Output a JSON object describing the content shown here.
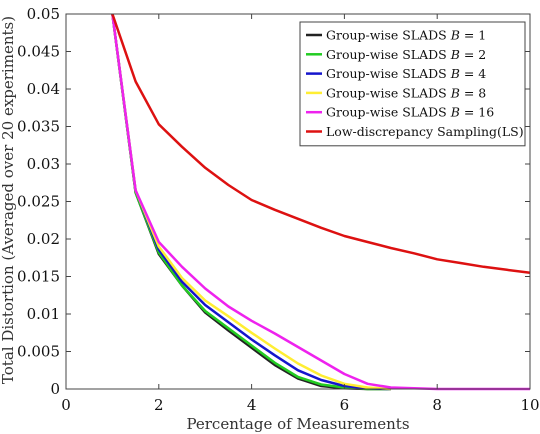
{
  "chart_data": {
    "type": "line",
    "title": "",
    "xlabel": "Percentage of Measurements",
    "ylabel": "Total Distortion (Averaged over 20 experiments)",
    "xlim": [
      0,
      10
    ],
    "ylim": [
      0,
      0.05
    ],
    "x_ticks": [
      0,
      2,
      4,
      6,
      8,
      10
    ],
    "x_tick_labels": [
      "0",
      "2",
      "4",
      "6",
      "8",
      "10"
    ],
    "y_ticks": [
      0,
      0.005,
      0.01,
      0.015,
      0.02,
      0.025,
      0.03,
      0.035,
      0.04,
      0.045,
      0.05
    ],
    "y_tick_labels": [
      "0",
      "0.005",
      "0.01",
      "0.015",
      "0.02",
      "0.025",
      "0.03",
      "0.035",
      "0.04",
      "0.045",
      "0.05"
    ],
    "grid": false,
    "legend_position": "top-right",
    "series": [
      {
        "name": "Group-wise SLADS B = 1",
        "legend_label": "Group-wise SLADS ",
        "legend_param": "B",
        "legend_value": " = 1",
        "color": "#222222",
        "x": [
          1.0,
          1.5,
          2.0,
          2.5,
          3.0,
          3.5,
          4.0,
          4.5,
          5.0,
          5.5,
          6.0,
          6.5,
          7.0
        ],
        "y": [
          0.05,
          0.0262,
          0.018,
          0.0138,
          0.0102,
          0.0078,
          0.0055,
          0.0032,
          0.0014,
          0.0004,
          0.0001,
          0.0,
          0.0
        ]
      },
      {
        "name": "Group-wise SLADS B = 2",
        "legend_label": "Group-wise SLADS ",
        "legend_param": "B",
        "legend_value": " = 2",
        "color": "#22cc22",
        "x": [
          1.0,
          1.5,
          2.0,
          2.5,
          3.0,
          3.5,
          4.0,
          4.5,
          5.0,
          5.5,
          6.0,
          6.5,
          7.0
        ],
        "y": [
          0.05,
          0.0262,
          0.0182,
          0.0138,
          0.0104,
          0.0081,
          0.0058,
          0.0035,
          0.0016,
          0.0006,
          0.0002,
          0.0,
          0.0
        ]
      },
      {
        "name": "Group-wise SLADS B = 4",
        "legend_label": "Group-wise SLADS ",
        "legend_param": "B",
        "legend_value": " = 4",
        "color": "#1515cc",
        "x": [
          1.0,
          1.5,
          2.0,
          2.5,
          3.0,
          3.5,
          4.0,
          4.5,
          5.0,
          5.5,
          6.0,
          6.5,
          7.0
        ],
        "y": [
          0.05,
          0.0265,
          0.0186,
          0.0143,
          0.0112,
          0.0089,
          0.0066,
          0.0045,
          0.0025,
          0.0012,
          0.0004,
          0.0001,
          0.0
        ]
      },
      {
        "name": "Group-wise SLADS B = 8",
        "legend_label": "Group-wise SLADS ",
        "legend_param": "B",
        "legend_value": " = 8",
        "color": "#ffee33",
        "x": [
          1.0,
          1.5,
          2.0,
          2.5,
          3.0,
          3.5,
          4.0,
          4.5,
          5.0,
          5.5,
          6.0,
          6.5,
          7.0
        ],
        "y": [
          0.05,
          0.0265,
          0.019,
          0.0148,
          0.0118,
          0.0097,
          0.0075,
          0.0054,
          0.0034,
          0.0018,
          0.0007,
          0.0002,
          0.0
        ]
      },
      {
        "name": "Group-wise SLADS B = 16",
        "legend_label": "Group-wise SLADS ",
        "legend_param": "B",
        "legend_value": " = 16",
        "color": "#ee22ee",
        "x": [
          1.0,
          1.5,
          2.0,
          2.5,
          3.0,
          3.5,
          4.0,
          4.5,
          5.0,
          5.5,
          6.0,
          6.5,
          7.0,
          8.0,
          9.0,
          10.0
        ],
        "y": [
          0.05,
          0.0265,
          0.0196,
          0.0163,
          0.0134,
          0.011,
          0.0091,
          0.0074,
          0.0056,
          0.0038,
          0.002,
          0.0007,
          0.0002,
          0.0,
          0.0,
          0.0
        ]
      },
      {
        "name": "Low-discrepancy Sampling(LS)",
        "legend_label": "Low-discrepancy Sampling(LS)",
        "legend_param": "",
        "legend_value": "",
        "color": "#dd1111",
        "x": [
          1.0,
          1.5,
          2.0,
          2.5,
          3.0,
          3.5,
          4.0,
          4.5,
          5.0,
          5.5,
          6.0,
          6.5,
          7.0,
          7.5,
          8.0,
          8.5,
          9.0,
          9.5,
          10.0
        ],
        "y": [
          0.05,
          0.041,
          0.0353,
          0.0323,
          0.0295,
          0.0272,
          0.0252,
          0.0239,
          0.0227,
          0.0215,
          0.0204,
          0.0196,
          0.0188,
          0.0181,
          0.0173,
          0.0168,
          0.0163,
          0.0159,
          0.0155
        ]
      }
    ]
  }
}
